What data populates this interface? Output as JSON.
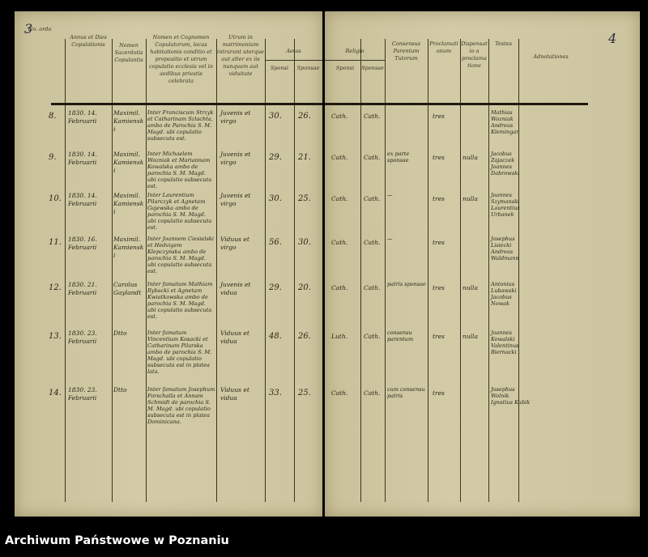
{
  "page_numbers": {
    "left": "3",
    "right": "4"
  },
  "headers": {
    "no": "No. ordo",
    "annus": "Annus et Dies Copulationis",
    "sacerdos": "Nomen Sacerdotis Copulantis",
    "nomen": "Nomen et Cognomen Copulatorum, locus habitationis conditio et propositio et utrum copulatio ecclesia vel in aedibus privatis celebrata",
    "status": "Utrum in matrimonium intrarunt uterque aut alter ex iis nunquam aut viduitate",
    "aetas": "Aetas",
    "sponsi": "Sponsi",
    "sponsae": "Sponsae",
    "religio": "Religio",
    "consensus": "Consensus Parentum Tutorum",
    "proclamationes": "Proclamationum",
    "dispensatio": "Dispensatio a proclamatione",
    "testes": "Testes",
    "adnotationes": "Adnotationes"
  },
  "rows": [
    {
      "no": "8.",
      "date": "1830. 14. Februarii",
      "priest": "Maximil. Kamienski",
      "names": "Inter Franciscum Strzyk et Catharinam Szlachta, ambo de Parochia S. M. Magd. ubi copulatio subsecuta est.",
      "status": "Juvenis et virgo",
      "age_m": "30.",
      "age_f": "26.",
      "rel_m": "Cath.",
      "rel_f": "Cath.",
      "consensus": "",
      "procl": "tres",
      "disp": "",
      "testes": "Mathias Wozniak Andreas Klemingar"
    },
    {
      "no": "9.",
      "date": "1830. 14. Februarii",
      "priest": "Maximil. Kamienski",
      "names": "Inter Michaelem Wozniak et Mariannam Kowalska ambo de parochia S. M. Magd. ubi copulatio subsecuta est.",
      "status": "Juvenis et virgo",
      "age_m": "29.",
      "age_f": "21.",
      "rel_m": "Cath.",
      "rel_f": "Cath.",
      "consensus": "ex parte sponsae",
      "procl": "tres",
      "disp": "nulla",
      "testes": "Jacobus Zajaczek Joannes Dabrowski"
    },
    {
      "no": "10.",
      "date": "1830. 14. Februarii",
      "priest": "Maximil. Kamienski",
      "names": "Inter Laurentium Pilarczyk et Agnetam Gajewska ambo de parochia S. M. Magd. ubi copulatio subsecuta est.",
      "status": "Juvenis et virgo",
      "age_m": "30.",
      "age_f": "25.",
      "rel_m": "Cath.",
      "rel_f": "Cath.",
      "consensus": "—",
      "procl": "tres",
      "disp": "nulla",
      "testes": "Joannes Szymanski Laurentius Urbanek"
    },
    {
      "no": "11.",
      "date": "1830. 16. Februarii",
      "priest": "Maximil. Kamienski",
      "names": "Inter Joannem Ciesielski et Hedvigem Klepczynska ambo de parochia S. M. Magd. ubi copulatio subsecuta est.",
      "status": "Viduus et virgo",
      "age_m": "56.",
      "age_f": "30.",
      "rel_m": "Cath.",
      "rel_f": "Cath.",
      "consensus": "—",
      "procl": "tres",
      "disp": "",
      "testes": "Josephus Lisiecki Andreas Waldmann"
    },
    {
      "no": "12.",
      "date": "1830. 21. Februarii",
      "priest": "Carolus Gaylandt",
      "names": "Inter famatum Mathiam Rybacki et Agnetam Kwiatkowska ambo de parochia S. M. Magd. ubi copulatio subsecuta est.",
      "status": "Juvenis et vidua",
      "age_m": "29.",
      "age_f": "20.",
      "rel_m": "Cath.",
      "rel_f": "Cath.",
      "consensus": "patris sponsae",
      "procl": "tres",
      "disp": "nulla",
      "testes": "Antonius Lubawski Jacobus Nowak"
    },
    {
      "no": "13.",
      "date": "1830. 23. Februarii",
      "priest": "Dtto",
      "names": "Inter famatum Vincentium Kosacki et Catharinam Pilarska ambo de parochia S. M. Magd. ubi copulatio subsecuta est in platea lata.",
      "status": "Viduus et vidua",
      "age_m": "48.",
      "age_f": "26.",
      "rel_m": "Luth.",
      "rel_f": "Cath.",
      "consensus": "consensu parentum",
      "procl": "tres",
      "disp": "nulla",
      "testes": "Joannes Kowalski Valentinus Biernacki"
    },
    {
      "no": "14.",
      "date": "1830. 23. Februarii",
      "priest": "Dtto",
      "names": "Inter famatum Josephum Forschalla et Annam Schmidt de parochia S. M. Magd. ubi copulatio subsecuta est in platea Dominicana.",
      "status": "Viduus et vidua",
      "age_m": "33.",
      "age_f": "25.",
      "rel_m": "Cath.",
      "rel_f": "Cath.",
      "consensus": "cum consensu patris",
      "procl": "tres",
      "disp": "",
      "testes": "Josephus Wolnik Ignatius Kubik"
    }
  ],
  "footer": {
    "archive": "Archiwum Państwowe w Poznaniu"
  }
}
